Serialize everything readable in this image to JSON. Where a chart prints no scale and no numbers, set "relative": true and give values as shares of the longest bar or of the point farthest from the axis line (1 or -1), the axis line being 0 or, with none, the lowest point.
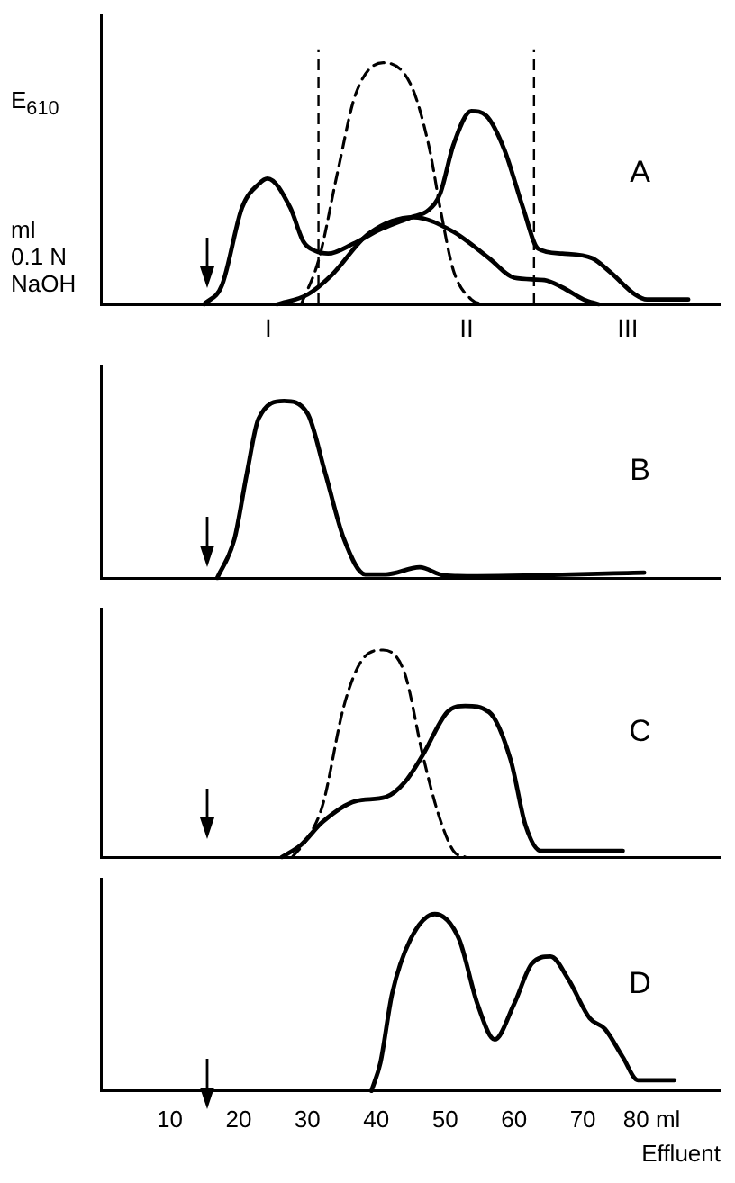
{
  "chart_data": [
    {
      "type": "line",
      "relative": true,
      "ylabel": "E$_{610}$",
      "y2label": "ml\n0.1 N\nNaOH",
      "xlim": [
        0,
        90
      ],
      "tick_labels": false,
      "legend": false,
      "grid": false,
      "marker": "none",
      "series": [
        {
          "color": "#000000",
          "line_style": "solid",
          "x": [
            15.0,
            17.6,
            20.5,
            23.0,
            24.2,
            27.5,
            29.4,
            31.2,
            33.0,
            36.6,
            40.6,
            45.0,
            47.6,
            49.3,
            51.2,
            53.8,
            56.0,
            58.6,
            61.3,
            63.5,
            67.0,
            71.4,
            74.1,
            77.6,
            79.3,
            85.3
          ],
          "values": [
            0,
            0.08,
            0.4,
            0.5,
            0.52,
            0.4,
            0.26,
            0.22,
            0.21,
            0.25,
            0.31,
            0.36,
            0.39,
            0.46,
            0.66,
            0.8,
            0.78,
            0.64,
            0.4,
            0.23,
            0.21,
            0.19,
            0.13,
            0.04,
            0.02,
            0.02
          ]
        },
        {
          "color": "#000000",
          "line_style": "solid",
          "x": [
            25.6,
            30.0,
            33.5,
            38.8,
            45.4,
            51.2,
            56.4,
            60.0,
            64.4,
            67.0,
            70.1,
            72.3
          ],
          "values": [
            0,
            0.04,
            0.12,
            0.29,
            0.36,
            0.3,
            0.19,
            0.11,
            0.1,
            0.07,
            0.02,
            0
          ]
        },
        {
          "color": "#000000",
          "line_style": "dashed",
          "x": [
            29.1,
            31.7,
            34.4,
            37.0,
            41.0,
            45.0,
            47.6,
            49.4,
            51.2,
            53.8,
            55.6
          ],
          "values": [
            0,
            0.19,
            0.55,
            0.87,
            1.0,
            0.91,
            0.66,
            0.38,
            0.14,
            0.02,
            0
          ]
        }
      ],
      "ref_lines": [
        {
          "axis": "x",
          "value": 31.6,
          "line_style": "dashed",
          "color": "#000000"
        },
        {
          "axis": "x",
          "value": 62.9,
          "line_style": "dashed",
          "color": "#000000"
        }
      ],
      "annotations": [
        "A",
        "I",
        "II",
        "III"
      ]
    },
    {
      "type": "line",
      "relative": true,
      "xlim": [
        0,
        90
      ],
      "xticks": [
        10,
        20,
        30,
        40,
        50,
        60,
        70,
        80
      ],
      "tick_labels": false,
      "legend": false,
      "grid": false,
      "marker": "none",
      "series": [
        {
          "color": "#000000",
          "line_style": "solid",
          "x": [
            16.9,
            19.4,
            21.2,
            22.9,
            26.6,
            30.0,
            32.6,
            35.3,
            38.4,
            41.4,
            46.3,
            49.8,
            54.7,
            78.9
          ],
          "values": [
            0,
            0.22,
            0.59,
            0.9,
            1.0,
            0.93,
            0.59,
            0.22,
            0.02,
            0.02,
            0.06,
            0.015,
            0.01,
            0.03
          ]
        }
      ],
      "annotations": [
        "B"
      ]
    },
    {
      "type": "line",
      "relative": true,
      "xlim": [
        0,
        90
      ],
      "xticks": [
        10,
        20,
        30,
        40,
        50,
        60,
        70,
        80
      ],
      "tick_labels": false,
      "legend": false,
      "grid": false,
      "marker": "none",
      "series": [
        {
          "color": "#000000",
          "line_style": "dashed",
          "x": [
            27.8,
            30.0,
            32.2,
            35.3,
            37.9,
            41.0,
            44.1,
            46.7,
            48.9,
            51.2,
            52.9
          ],
          "values": [
            0,
            0.09,
            0.25,
            0.73,
            0.95,
            1.0,
            0.89,
            0.5,
            0.22,
            0.03,
            0
          ]
        },
        {
          "color": "#000000",
          "line_style": "solid",
          "x": [
            26.3,
            29.1,
            32.2,
            37.0,
            41.4,
            44.1,
            46.7,
            50.3,
            52.9,
            56.4,
            59.5,
            61.7,
            63.9,
            75.8
          ],
          "values": [
            0,
            0.06,
            0.17,
            0.27,
            0.29,
            0.36,
            0.49,
            0.7,
            0.73,
            0.7,
            0.47,
            0.15,
            0.03,
            0.03
          ]
        }
      ],
      "annotations": [
        "C"
      ]
    },
    {
      "type": "line",
      "relative": true,
      "xlabel": "Effluent",
      "xlim": [
        0,
        90
      ],
      "xticks": [
        10,
        20,
        30,
        40,
        50,
        60,
        70,
        {
          "value": 80,
          "label": "80 ml"
        }
      ],
      "tick_labels": "x",
      "legend": false,
      "grid": false,
      "marker": "none",
      "series": [
        {
          "color": "#000000",
          "line_style": "solid",
          "x": [
            39.3,
            40.6,
            42.3,
            45.0,
            48.5,
            52.0,
            54.7,
            57.2,
            60.0,
            62.6,
            65.3,
            67.9,
            71.0,
            73.2,
            75.8,
            78.0,
            83.3
          ],
          "values": [
            0,
            0.16,
            0.55,
            0.86,
            1.0,
            0.86,
            0.49,
            0.29,
            0.49,
            0.72,
            0.76,
            0.63,
            0.41,
            0.35,
            0.19,
            0.06,
            0.06
          ]
        }
      ],
      "annotations": [
        "D"
      ]
    }
  ]
}
